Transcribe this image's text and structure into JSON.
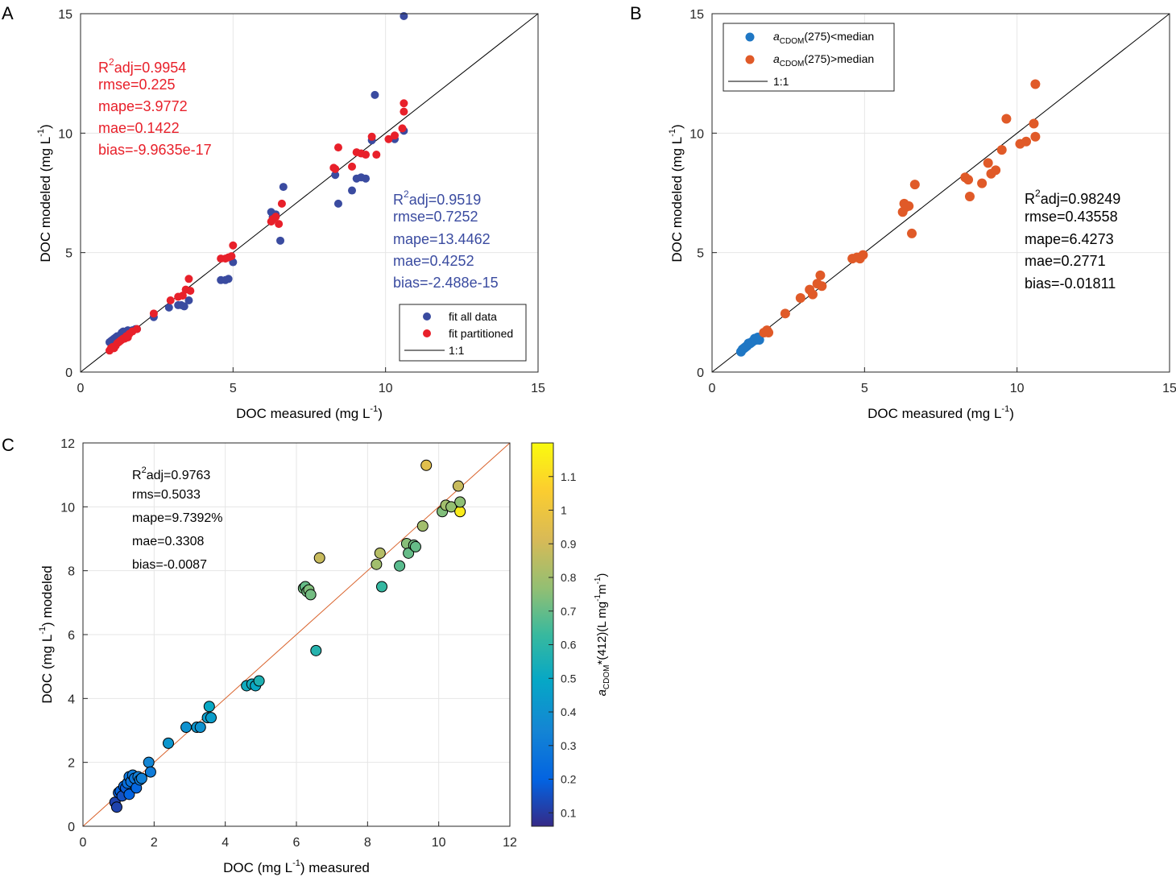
{
  "figure": {
    "panels": [
      "A",
      "B",
      "C"
    ]
  },
  "chart_data": [
    {
      "panel": "A",
      "type": "scatter",
      "xlabel": "DOC measured (mg L",
      "xlabel_sup": "-1",
      "xlabel_end": ")",
      "ylabel": "DOC modeled (mg L",
      "ylabel_sup": "-1",
      "ylabel_end": ")",
      "xlim": [
        0,
        15
      ],
      "ylim": [
        0,
        15
      ],
      "xticks": [
        0,
        5,
        10,
        15
      ],
      "yticks": [
        0,
        5,
        10,
        15
      ],
      "grid": true,
      "colors": {
        "fit_all": "#3a4ba0",
        "fit_partitioned": "#e8202a",
        "line": "#000000"
      },
      "legend": {
        "position": "bottom-right",
        "entries": [
          "fit all data",
          "fit partitioned",
          "1:1"
        ]
      },
      "reference_line": {
        "name": "1:1",
        "x": [
          0,
          15
        ],
        "y": [
          0,
          15
        ]
      },
      "stats_red": [
        "R²adj=0.9954",
        "rmse=0.225",
        "mape=3.9772",
        "mae=0.1422",
        "bias=-9.9635e-17"
      ],
      "stats_blue": [
        "R²adj=0.9519",
        "rmse=0.7252",
        "mape=13.4462",
        "mae=0.4252",
        "bias=-2.488e-15"
      ],
      "series": [
        {
          "name": "fit all data",
          "x": [
            0.95,
            1.0,
            1.05,
            1.1,
            1.15,
            1.2,
            1.25,
            1.3,
            1.35,
            1.4,
            1.45,
            1.5,
            1.55,
            1.6,
            1.7,
            1.8,
            1.85,
            2.4,
            2.9,
            3.2,
            3.3,
            3.4,
            3.55,
            4.6,
            4.75,
            4.85,
            5.0,
            6.25,
            6.3,
            6.4,
            6.55,
            6.65,
            8.35,
            8.45,
            8.9,
            9.05,
            9.2,
            9.35,
            9.55,
            9.65,
            10.3,
            10.6,
            10.6
          ],
          "y": [
            1.25,
            1.3,
            1.35,
            1.4,
            1.45,
            1.5,
            1.5,
            1.55,
            1.65,
            1.7,
            1.65,
            1.7,
            1.75,
            1.7,
            1.75,
            1.8,
            1.8,
            2.3,
            2.7,
            2.8,
            2.8,
            2.75,
            3.0,
            3.85,
            3.85,
            3.9,
            4.6,
            6.7,
            6.5,
            6.6,
            5.5,
            7.75,
            8.25,
            7.05,
            7.6,
            8.1,
            8.15,
            8.1,
            9.7,
            11.6,
            9.75,
            10.1,
            14.9
          ]
        },
        {
          "name": "fit partitioned",
          "x": [
            0.95,
            1.0,
            1.05,
            1.1,
            1.15,
            1.2,
            1.25,
            1.3,
            1.35,
            1.4,
            1.45,
            1.5,
            1.55,
            1.6,
            1.7,
            1.85,
            2.4,
            2.95,
            3.2,
            3.35,
            3.45,
            3.55,
            3.6,
            4.6,
            4.75,
            4.85,
            4.95,
            5.0,
            6.25,
            6.3,
            6.4,
            6.5,
            6.6,
            8.3,
            8.35,
            8.45,
            8.9,
            9.05,
            9.2,
            9.35,
            9.55,
            9.7,
            10.1,
            10.3,
            10.55,
            10.6,
            10.6
          ],
          "y": [
            0.9,
            1.0,
            1.05,
            1.0,
            1.1,
            1.2,
            1.25,
            1.3,
            1.35,
            1.4,
            1.4,
            1.5,
            1.45,
            1.6,
            1.7,
            1.8,
            2.45,
            3.0,
            3.15,
            3.2,
            3.45,
            3.9,
            3.4,
            4.75,
            4.75,
            4.8,
            4.85,
            5.3,
            6.3,
            6.4,
            6.5,
            6.2,
            7.05,
            8.55,
            8.5,
            9.4,
            8.6,
            9.2,
            9.15,
            9.1,
            9.85,
            9.1,
            9.75,
            9.9,
            10.2,
            11.25,
            10.9
          ]
        }
      ]
    },
    {
      "panel": "B",
      "type": "scatter",
      "xlabel": "DOC measured (mg L",
      "xlabel_sup": "-1",
      "xlabel_end": ")",
      "ylabel": "DOC modeled (mg L",
      "ylabel_sup": "-1",
      "ylabel_end": ")",
      "xlim": [
        0,
        15
      ],
      "ylim": [
        0,
        15
      ],
      "xticks": [
        0,
        5,
        10,
        15
      ],
      "yticks": [
        0,
        5,
        10,
        15
      ],
      "grid": true,
      "colors": {
        "below": "#1f77c4",
        "above": "#e05a28",
        "line": "#000000"
      },
      "legend": {
        "position": "top-left",
        "entries": [
          {
            "prefix": "a",
            "sub": "CDOM",
            "text": "(275)<median"
          },
          {
            "prefix": "a",
            "sub": "CDOM",
            "text": "(275)>median"
          },
          {
            "prefix": "",
            "sub": "",
            "text": "1:1"
          }
        ]
      },
      "reference_line": {
        "name": "1:1",
        "x": [
          0,
          15
        ],
        "y": [
          0,
          15
        ]
      },
      "stats": [
        "R²adj=0.98249",
        "rmse=0.43558",
        "mape=6.4273",
        "mae=0.2771",
        "bias=-0.01811"
      ],
      "series": [
        {
          "name": "aCDOM(275)<median",
          "x": [
            0.95,
            1.0,
            1.05,
            1.1,
            1.15,
            1.2,
            1.25,
            1.3,
            1.35,
            1.4,
            1.45,
            1.5,
            1.55
          ],
          "y": [
            0.85,
            0.95,
            1.0,
            1.05,
            1.1,
            1.2,
            1.2,
            1.25,
            1.3,
            1.4,
            1.35,
            1.45,
            1.35
          ]
        },
        {
          "name": "aCDOM(275)>median",
          "x": [
            1.7,
            1.8,
            1.85,
            2.4,
            2.9,
            3.2,
            3.3,
            3.45,
            3.55,
            3.6,
            4.6,
            4.75,
            4.85,
            4.95,
            6.25,
            6.3,
            6.35,
            6.45,
            6.55,
            6.65,
            8.3,
            8.4,
            8.45,
            8.85,
            9.05,
            9.15,
            9.3,
            9.5,
            9.65,
            10.1,
            10.3,
            10.55,
            10.6,
            10.6
          ],
          "y": [
            1.65,
            1.75,
            1.65,
            2.45,
            3.1,
            3.45,
            3.25,
            3.7,
            4.05,
            3.6,
            4.75,
            4.8,
            4.75,
            4.9,
            6.7,
            7.05,
            6.9,
            6.95,
            5.8,
            7.85,
            8.15,
            8.05,
            7.35,
            7.9,
            8.75,
            8.3,
            8.45,
            9.3,
            10.6,
            9.55,
            9.65,
            10.4,
            9.85,
            12.05
          ]
        }
      ]
    },
    {
      "panel": "C",
      "type": "scatter",
      "xlabel": "DOC (mg L",
      "xlabel_sup": "-1",
      "xlabel_end": ") measured",
      "ylabel": "DOC (mg L",
      "ylabel_sup": "-1",
      "ylabel_end": ") modeled",
      "xlim": [
        0,
        12
      ],
      "ylim": [
        0,
        12
      ],
      "xticks": [
        0,
        2,
        4,
        6,
        8,
        10,
        12
      ],
      "yticks": [
        0,
        2,
        4,
        6,
        8,
        10,
        12
      ],
      "grid": true,
      "colors": {
        "line": "#d9622b",
        "marker_edge": "#000000"
      },
      "reference_line": {
        "x": [
          0,
          12
        ],
        "y": [
          0,
          12
        ]
      },
      "stats": [
        "R²adj=0.9763",
        "rms=0.5033",
        "mape=9.7392%",
        "mae=0.3308",
        "bias=-0.0087"
      ],
      "colorbar": {
        "label_prefix": "a",
        "label_sub": "CDOM",
        "label_text": "*(412)(L mg",
        "label_sup1": "-1",
        "label_mid": "m",
        "label_sup2": "-1",
        "label_end": ")",
        "range": [
          0.06,
          1.2
        ],
        "ticks": [
          0.1,
          0.2,
          0.3,
          0.4,
          0.5,
          0.6,
          0.7,
          0.8,
          0.9,
          1,
          1.1
        ],
        "tick_labels": [
          "0.1",
          "0.2",
          "0.3",
          "0.4",
          "0.5",
          "0.6",
          "0.7",
          "0.8",
          "0.9",
          "1",
          "1.1"
        ],
        "colormap": "parula"
      },
      "series": [
        {
          "name": "samples",
          "x": [
            0.9,
            0.95,
            1.0,
            1.05,
            1.1,
            1.15,
            1.2,
            1.25,
            1.3,
            1.3,
            1.35,
            1.4,
            1.45,
            1.5,
            1.55,
            1.6,
            1.65,
            1.85,
            1.9,
            2.4,
            2.9,
            3.2,
            3.3,
            3.5,
            3.55,
            3.6,
            4.6,
            4.75,
            4.85,
            4.95,
            6.2,
            6.25,
            6.3,
            6.35,
            6.4,
            6.55,
            6.65,
            8.25,
            8.35,
            8.4,
            8.9,
            9.1,
            9.15,
            9.3,
            9.35,
            9.55,
            9.65,
            10.1,
            10.2,
            10.35,
            10.55,
            10.6,
            10.6
          ],
          "y": [
            0.75,
            0.6,
            1.05,
            1.1,
            0.95,
            1.25,
            1.2,
            1.35,
            1.55,
            1.0,
            1.4,
            1.6,
            1.5,
            1.2,
            1.55,
            1.45,
            1.5,
            2.0,
            1.7,
            2.6,
            3.1,
            3.1,
            3.1,
            3.4,
            3.75,
            3.4,
            4.4,
            4.45,
            4.4,
            4.55,
            7.45,
            7.5,
            7.35,
            7.4,
            7.25,
            5.5,
            8.4,
            8.2,
            8.55,
            7.5,
            8.15,
            8.85,
            8.55,
            8.8,
            8.75,
            9.4,
            11.3,
            9.85,
            10.05,
            10.0,
            10.65,
            9.85,
            10.15
          ],
          "c": [
            0.12,
            0.12,
            0.18,
            0.2,
            0.15,
            0.22,
            0.18,
            0.25,
            0.28,
            0.2,
            0.26,
            0.3,
            0.28,
            0.22,
            0.32,
            0.3,
            0.32,
            0.35,
            0.3,
            0.42,
            0.4,
            0.42,
            0.4,
            0.45,
            0.5,
            0.45,
            0.52,
            0.52,
            0.5,
            0.56,
            0.72,
            0.7,
            0.72,
            0.74,
            0.72,
            0.58,
            0.88,
            0.8,
            0.84,
            0.62,
            0.68,
            0.75,
            0.7,
            0.72,
            0.7,
            0.8,
            0.95,
            0.74,
            0.8,
            0.77,
            0.88,
            1.15,
            0.76
          ]
        }
      ]
    }
  ]
}
